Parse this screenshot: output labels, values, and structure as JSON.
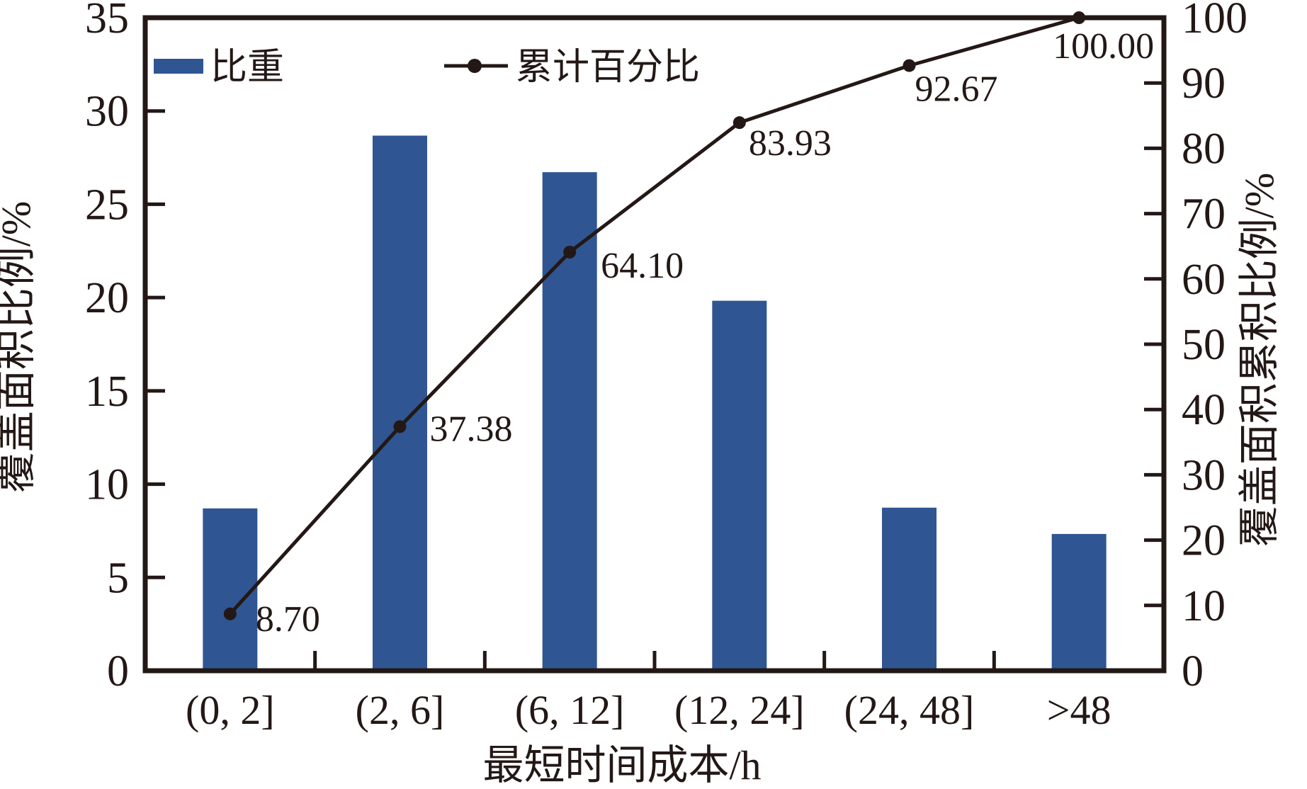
{
  "chart_data": {
    "type": "bar",
    "subtype": "pareto-combo-bar-line",
    "categories": [
      "(0, 2]",
      "(2, 6]",
      "(6, 12]",
      "(12, 24]",
      "(24, 48]",
      ">48"
    ],
    "series": [
      {
        "name": "比重",
        "type": "bar",
        "axis": "left",
        "values": [
          8.7,
          28.68,
          26.72,
          19.83,
          8.74,
          7.33
        ]
      },
      {
        "name": "累计百分比",
        "type": "line",
        "axis": "right",
        "values": [
          8.7,
          37.38,
          64.1,
          83.93,
          92.67,
          100.0
        ],
        "point_labels": [
          "8.70",
          "37.38",
          "64.10",
          "83.93",
          "92.67",
          "100.00"
        ]
      }
    ],
    "title": "",
    "xlabel": "最短时间成本/h",
    "ylabel_left": "覆盖面积比例/%",
    "ylabel_right": "覆盖面积累积比例/%",
    "y_left": {
      "min": 0,
      "max": 35,
      "step": 5,
      "ticks": [
        0,
        5,
        10,
        15,
        20,
        25,
        30,
        35
      ]
    },
    "y_right": {
      "min": 0,
      "max": 100,
      "step": 10,
      "ticks": [
        0,
        10,
        20,
        30,
        40,
        50,
        60,
        70,
        80,
        90,
        100
      ]
    },
    "legend": {
      "position": "top-inside",
      "entries": [
        "比重",
        "累计百分比"
      ]
    },
    "grid": false,
    "colors": {
      "bar": "#2F5693",
      "line": "#231815",
      "marker": "#231815",
      "text": "#231815",
      "axis": "#231815",
      "background": "#FFFFFF"
    }
  }
}
